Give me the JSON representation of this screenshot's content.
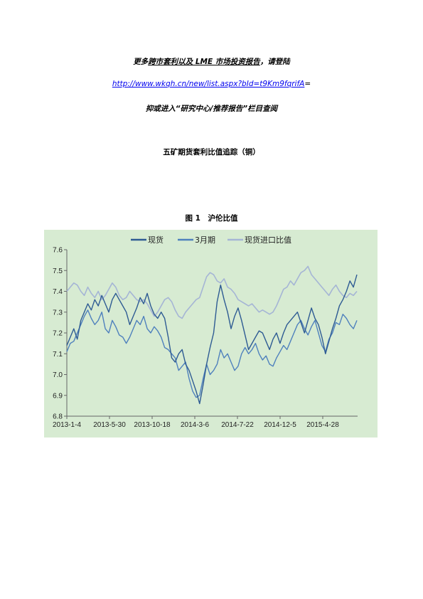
{
  "header": {
    "promo_pre": "更多",
    "promo_mid": "跨市套利以及 LME 市场投资报告",
    "promo_post": "，请登陆",
    "url": "http://www.wkqh.cn/new/list.aspx?bId=t9Km9fqrifA",
    "url_tail": "=",
    "subline": "抑或进入“研究中心/推荐报告”栏目查阅"
  },
  "doc_title": "五矿期货套利比值追踪（铜）",
  "figure_caption": "图 1　沪伦比值",
  "colors": {
    "plot_bg": "#d7ebd2",
    "spot": "#2e5b93",
    "three_month": "#4f81bd",
    "import_ratio": "#a5b5d5"
  },
  "chart_data": {
    "type": "line",
    "x_tick_labels": [
      "2013-1-4",
      "2013-5-30",
      "2013-10-18",
      "2014-3-6",
      "2014-7-22",
      "2014-12-5",
      "2015-4-28"
    ],
    "ylim": [
      6.8,
      7.6
    ],
    "y_ticks": [
      "6.8",
      "6.9",
      "7.0",
      "7.1",
      "7.2",
      "7.3",
      "7.4",
      "7.5",
      "7.6"
    ],
    "legend_position": "top",
    "grid": false,
    "series": [
      {
        "name": "现货",
        "color_key": "spot",
        "values": [
          7.14,
          7.18,
          7.22,
          7.17,
          7.26,
          7.3,
          7.34,
          7.31,
          7.36,
          7.33,
          7.38,
          7.34,
          7.3,
          7.36,
          7.39,
          7.36,
          7.33,
          7.3,
          7.24,
          7.28,
          7.32,
          7.37,
          7.34,
          7.39,
          7.33,
          7.29,
          7.27,
          7.3,
          7.27,
          7.18,
          7.08,
          7.06,
          7.1,
          7.12,
          7.05,
          7.02,
          6.97,
          6.92,
          6.86,
          6.95,
          7.05,
          7.13,
          7.2,
          7.35,
          7.43,
          7.36,
          7.3,
          7.22,
          7.28,
          7.32,
          7.26,
          7.19,
          7.12,
          7.15,
          7.18,
          7.21,
          7.2,
          7.16,
          7.12,
          7.17,
          7.2,
          7.15,
          7.2,
          7.24,
          7.26,
          7.28,
          7.3,
          7.25,
          7.2,
          7.26,
          7.32,
          7.27,
          7.24,
          7.18,
          7.1,
          7.16,
          7.22,
          7.27,
          7.33,
          7.36,
          7.4,
          7.45,
          7.42,
          7.48
        ]
      },
      {
        "name": "3月期",
        "color_key": "three_month",
        "values": [
          7.11,
          7.15,
          7.16,
          7.2,
          7.24,
          7.28,
          7.31,
          7.27,
          7.24,
          7.26,
          7.3,
          7.22,
          7.2,
          7.26,
          7.23,
          7.19,
          7.18,
          7.15,
          7.18,
          7.22,
          7.26,
          7.24,
          7.28,
          7.22,
          7.2,
          7.23,
          7.21,
          7.18,
          7.13,
          7.12,
          7.1,
          7.08,
          7.02,
          7.04,
          7.06,
          6.98,
          6.92,
          6.89,
          6.9,
          6.98,
          7.05,
          7.0,
          7.02,
          7.05,
          7.12,
          7.08,
          7.1,
          7.06,
          7.02,
          7.04,
          7.1,
          7.13,
          7.1,
          7.12,
          7.15,
          7.1,
          7.07,
          7.09,
          7.05,
          7.04,
          7.08,
          7.11,
          7.14,
          7.12,
          7.16,
          7.2,
          7.24,
          7.26,
          7.22,
          7.19,
          7.23,
          7.26,
          7.2,
          7.14,
          7.11,
          7.17,
          7.2,
          7.25,
          7.24,
          7.29,
          7.27,
          7.24,
          7.22,
          7.26
        ]
      },
      {
        "name": "现货进口比值",
        "color_key": "import_ratio",
        "values": [
          7.4,
          7.42,
          7.44,
          7.43,
          7.4,
          7.38,
          7.42,
          7.39,
          7.37,
          7.4,
          7.36,
          7.38,
          7.41,
          7.44,
          7.42,
          7.38,
          7.36,
          7.37,
          7.4,
          7.38,
          7.36,
          7.35,
          7.36,
          7.34,
          7.31,
          7.28,
          7.3,
          7.33,
          7.36,
          7.37,
          7.35,
          7.31,
          7.28,
          7.27,
          7.3,
          7.32,
          7.34,
          7.36,
          7.37,
          7.42,
          7.47,
          7.49,
          7.48,
          7.45,
          7.44,
          7.46,
          7.42,
          7.41,
          7.39,
          7.36,
          7.35,
          7.34,
          7.33,
          7.34,
          7.32,
          7.3,
          7.31,
          7.3,
          7.29,
          7.3,
          7.33,
          7.37,
          7.41,
          7.42,
          7.45,
          7.43,
          7.46,
          7.49,
          7.5,
          7.52,
          7.48,
          7.46,
          7.44,
          7.42,
          7.4,
          7.38,
          7.41,
          7.43,
          7.4,
          7.38,
          7.37,
          7.39,
          7.38,
          7.4
        ]
      }
    ]
  }
}
